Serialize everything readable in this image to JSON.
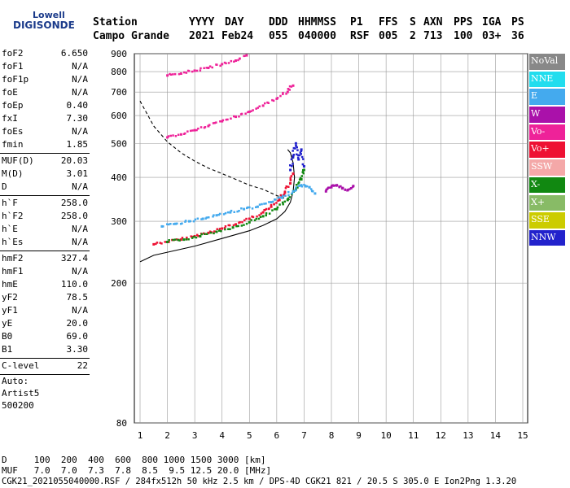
{
  "logo": {
    "line1": "Lowell",
    "line2": "DIGISONDE"
  },
  "header": {
    "labels": [
      "Station",
      "YYYY",
      "DAY",
      "DDD",
      "HHMMSS",
      "P1",
      "FFS",
      "S",
      "AXN",
      "PPS",
      "IGA",
      "PS"
    ],
    "values": [
      "Campo Grande",
      "2021",
      "Feb24",
      "055",
      "040000",
      "RSF",
      "005",
      "2",
      "713",
      "100",
      "03+",
      "36"
    ]
  },
  "params": {
    "group1": [
      [
        "foF2",
        "6.650"
      ],
      [
        "foF1",
        "N/A"
      ],
      [
        "foF1p",
        "N/A"
      ],
      [
        "foE",
        "N/A"
      ],
      [
        "foEp",
        "0.40"
      ],
      [
        "fxI",
        "7.30"
      ],
      [
        "foEs",
        "N/A"
      ],
      [
        "fmin",
        "1.85"
      ]
    ],
    "group2": [
      [
        "MUF(D)",
        "20.03"
      ],
      [
        "M(D)",
        "3.01"
      ],
      [
        "D",
        "N/A"
      ]
    ],
    "group3": [
      [
        "h`F",
        "258.0"
      ],
      [
        "h`F2",
        "258.0"
      ],
      [
        "h`E",
        "N/A"
      ],
      [
        "h`Es",
        "N/A"
      ]
    ],
    "group4": [
      [
        "hmF2",
        "327.4"
      ],
      [
        "hmF1",
        "N/A"
      ],
      [
        "hmE",
        "110.0"
      ],
      [
        "yF2",
        "78.5"
      ],
      [
        "yF1",
        "N/A"
      ],
      [
        "yE",
        "20.0"
      ],
      [
        "B0",
        "69.0"
      ],
      [
        "B1",
        "3.30"
      ]
    ],
    "group5": [
      [
        "C-level",
        "22"
      ]
    ],
    "auto": [
      "Auto:",
      "Artist5",
      "500200"
    ]
  },
  "legend": [
    {
      "label": "NoVal",
      "color": "#888888"
    },
    {
      "label": "NNE",
      "color": "#22ddee"
    },
    {
      "label": "E",
      "color": "#44aaee"
    },
    {
      "label": "W",
      "color": "#aa11aa"
    },
    {
      "label": "Vo-",
      "color": "#ee2299"
    },
    {
      "label": "Vo+",
      "color": "#ee1133"
    },
    {
      "label": "SSW",
      "color": "#f4a8a8"
    },
    {
      "label": "X-",
      "color": "#118811"
    },
    {
      "label": "X+",
      "color": "#88bb66"
    },
    {
      "label": "SSE",
      "color": "#cccc00"
    },
    {
      "label": "NNW",
      "color": "#2222cc"
    }
  ],
  "footer": {
    "line1": "D     100  200  400  600  800 1000 1500 3000 [km]",
    "line2": "MUF   7.0  7.0  7.3  7.8  8.5  9.5 12.5 20.0 [MHz]",
    "line3": "CGK21_2021055040000.RSF / 284fx512h 50 kHz 2.5 km / DPS-4D CGK21 821 / 20.5 S 305.0 E Ion2Png 1.3.20"
  },
  "chart_data": {
    "type": "scatter",
    "xlim": [
      1,
      15
    ],
    "ylim": [
      80,
      900
    ],
    "y_scale": "log",
    "x_ticks": [
      1,
      2,
      3,
      4,
      5,
      6,
      7,
      8,
      9,
      10,
      11,
      12,
      13,
      14,
      15
    ],
    "y_ticks": [
      80,
      200,
      300,
      400,
      500,
      600,
      700,
      800,
      900
    ],
    "grid": true,
    "series": [
      {
        "name": "O-trace F2 (Vo+/Vo-)",
        "color": "#ee1133",
        "x": [
          1.5,
          2,
          2.5,
          3,
          3.5,
          4,
          4.5,
          5,
          5.5,
          5.8,
          6.1,
          6.3,
          6.5,
          6.6
        ],
        "y": [
          258,
          262,
          266,
          272,
          278,
          286,
          294,
          305,
          318,
          330,
          345,
          362,
          385,
          410
        ]
      },
      {
        "name": "X-trace F2 (X-)",
        "color": "#118811",
        "x": [
          2,
          2.6,
          3.2,
          3.8,
          4.4,
          5,
          5.5,
          6,
          6.4,
          6.7,
          6.9,
          7.0
        ],
        "y": [
          262,
          266,
          272,
          280,
          288,
          298,
          310,
          325,
          345,
          370,
          395,
          420
        ]
      },
      {
        "name": "Oblique spread (E)",
        "color": "#44aaee",
        "x": [
          1.8,
          2.3,
          2.8,
          3.3,
          3.8,
          4.3,
          4.8,
          5.3,
          5.8,
          6.2,
          6.6,
          6.9,
          7.2,
          7.4
        ],
        "y": [
          290,
          295,
          300,
          305,
          312,
          318,
          325,
          330,
          340,
          350,
          365,
          380,
          375,
          360
        ]
      },
      {
        "name": "Second hop (Vo-)",
        "color": "#ee2299",
        "x": [
          2,
          2.5,
          3,
          3.5,
          4,
          4.5,
          5,
          5.5,
          6,
          6.4,
          6.6
        ],
        "y": [
          520,
          530,
          545,
          560,
          578,
          595,
          615,
          640,
          670,
          700,
          730
        ]
      },
      {
        "name": "Third hop (Vo-)",
        "color": "#ee2299",
        "x": [
          2,
          2.5,
          3,
          3.5,
          4,
          4.5,
          4.9
        ],
        "y": [
          780,
          790,
          805,
          820,
          840,
          860,
          890
        ]
      },
      {
        "name": "Spread F (W)",
        "color": "#aa11aa",
        "x": [
          7.8,
          8,
          8.2,
          8.4,
          8.6,
          8.8
        ],
        "y": [
          365,
          375,
          380,
          372,
          368,
          378
        ]
      },
      {
        "name": "NNW returns",
        "color": "#2222cc",
        "x": [
          6.5,
          6.6,
          6.7,
          6.8,
          6.9,
          7.0
        ],
        "y": [
          420,
          460,
          500,
          450,
          480,
          430
        ]
      }
    ],
    "profile_solid": {
      "x": [
        1,
        1.5,
        2,
        3,
        4,
        5,
        5.5,
        6,
        6.3,
        6.5,
        6.6,
        6.65,
        6.6,
        6.5,
        6.4
      ],
      "y": [
        230,
        240,
        245,
        255,
        268,
        282,
        292,
        305,
        320,
        340,
        365,
        400,
        440,
        470,
        480
      ]
    },
    "profile_dashed": {
      "x": [
        1,
        1.5,
        2,
        2.5,
        3,
        3.5,
        4,
        4.5,
        5,
        5.5,
        6,
        6.5
      ],
      "y": [
        660,
        560,
        505,
        470,
        445,
        425,
        410,
        395,
        380,
        370,
        355,
        345
      ]
    }
  }
}
